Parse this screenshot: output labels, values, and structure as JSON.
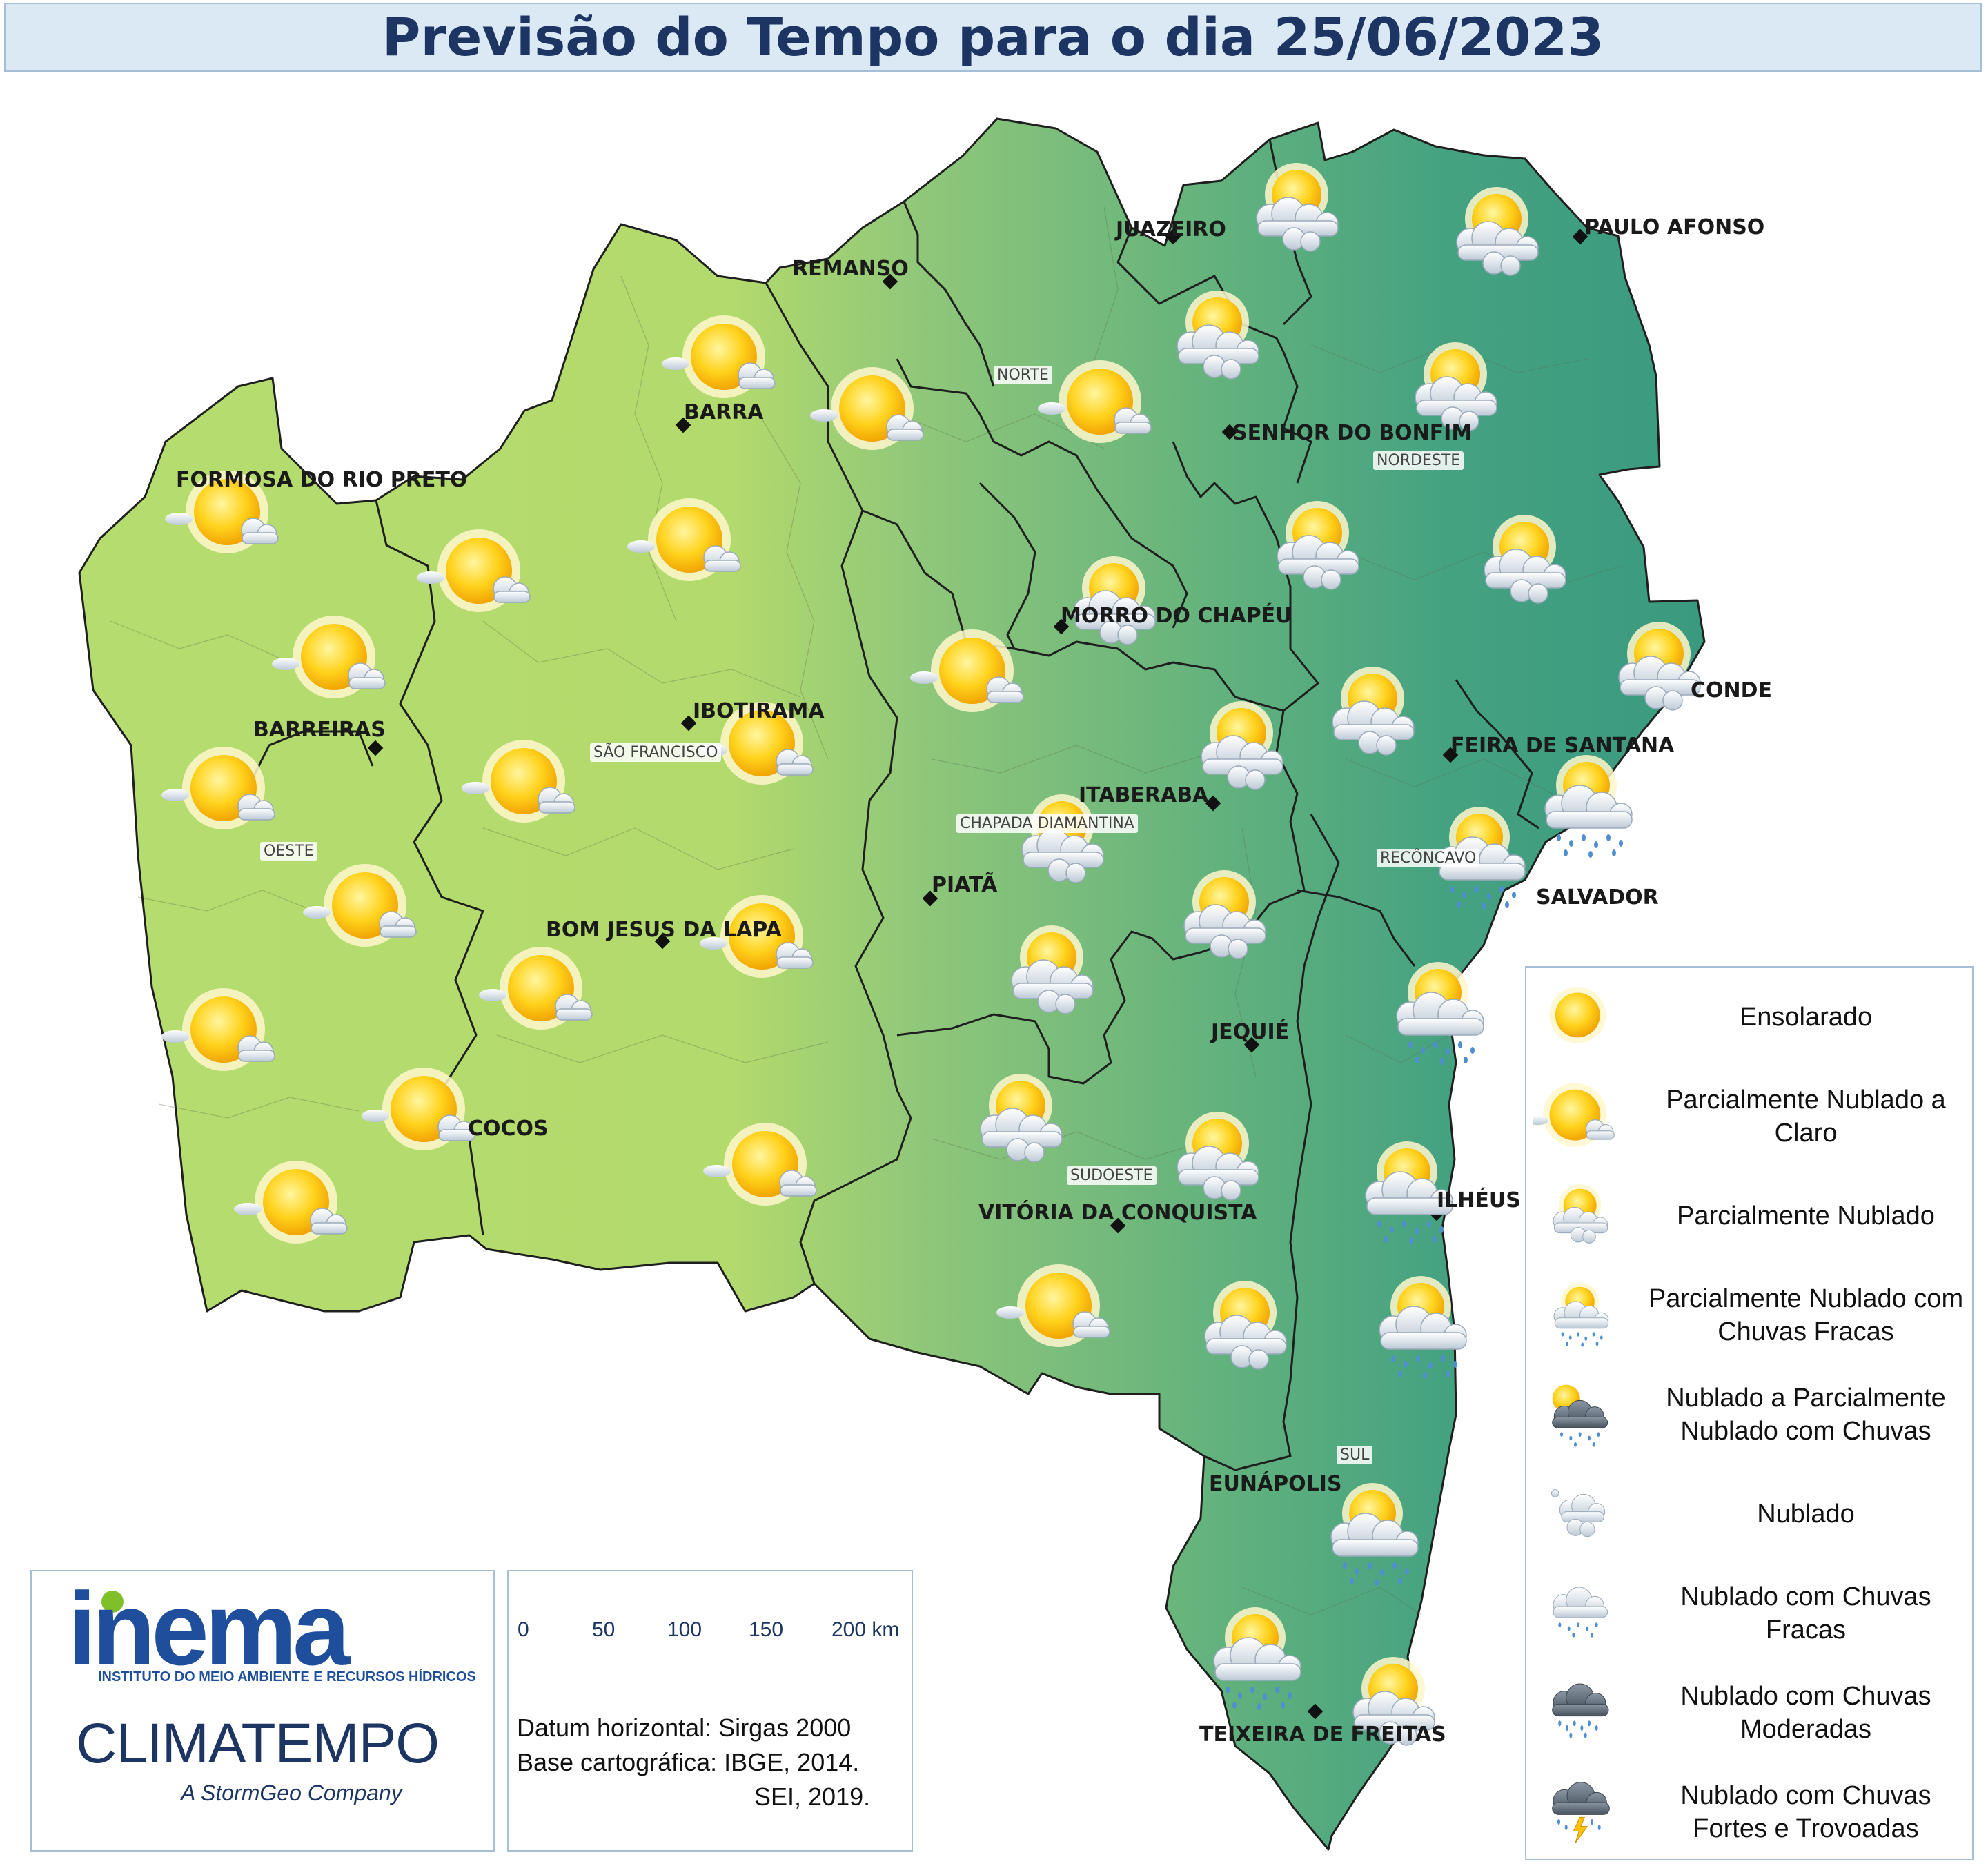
{
  "title": "Previsão do Tempo para o dia 25/06/2023",
  "cities": [
    {
      "name": "JUAZEIRO"
    },
    {
      "name": "PAULO AFONSO"
    },
    {
      "name": "REMANSO"
    },
    {
      "name": "BARRA"
    },
    {
      "name": "SENHOR DO BONFIM"
    },
    {
      "name": "FORMOSA DO RIO PRETO"
    },
    {
      "name": "MORRO DO CHAPÉU"
    },
    {
      "name": "CONDE"
    },
    {
      "name": "IBOTIRAMA"
    },
    {
      "name": "BARREIRAS"
    },
    {
      "name": "FEIRA DE SANTANA"
    },
    {
      "name": "ITABERABA"
    },
    {
      "name": "PIATÃ"
    },
    {
      "name": "SALVADOR"
    },
    {
      "name": "BOM JESUS DA LAPA"
    },
    {
      "name": "JEQUIÉ"
    },
    {
      "name": "COCOS"
    },
    {
      "name": "ILHÉUS"
    },
    {
      "name": "VITÓRIA DA CONQUISTA"
    },
    {
      "name": "EUNÁPOLIS"
    },
    {
      "name": "TEIXEIRA DE FREITAS"
    }
  ],
  "regions": [
    "NORTE",
    "NORDESTE",
    "SÃO FRANCISCO",
    "OESTE",
    "CHAPADA DIAMANTINA",
    "RECÔNCAVO",
    "SUDOESTE",
    "SUL"
  ],
  "legend": [
    {
      "label": "Ensolarado",
      "icon": "sun-icon"
    },
    {
      "label": "Parcialmente Nublado a Claro",
      "icon": "sun-small-cloud-icon"
    },
    {
      "label": "Parcialmente Nublado",
      "icon": "partly-cloudy-icon"
    },
    {
      "label": "Parcialmente Nublado com Chuvas Fracas",
      "icon": "partly-cloudy-light-rain-icon"
    },
    {
      "label": "Nublado a Parcialmente Nublado com Chuvas",
      "icon": "dark-cloud-sun-rain-icon"
    },
    {
      "label": "Nublado",
      "icon": "cloud-icon"
    },
    {
      "label": "Nublado com Chuvas Fracas",
      "icon": "cloud-light-rain-icon"
    },
    {
      "label": "Nublado com Chuvas Moderadas",
      "icon": "dark-cloud-moderate-rain-icon"
    },
    {
      "label": "Nublado com Chuvas Fortes e Trovoadas",
      "icon": "storm-icon"
    }
  ],
  "scale": {
    "ticks": [
      "0",
      "50",
      "100",
      "150",
      "200 km"
    ]
  },
  "credits": {
    "datum": "Datum horizontal: Sirgas 2000",
    "base1": "Base cartográfica: IBGE, 2014.",
    "base2": "SEI, 2019."
  },
  "logos": {
    "inema": "inema",
    "inema_subtitle": "INSTITUTO DO MEIO AMBIENTE E RECURSOS HÍDRICOS",
    "climatempo": "CLIMATEMPO",
    "climatempo_tagline": "A StormGeo Company"
  },
  "colors": {
    "title_bg": "#dbe9f5",
    "title_text": "#1d3563",
    "west": "#b5dc6e",
    "east": "#3e9e80",
    "border": "#a7bfd6"
  },
  "forecast_icons": [
    "partly-cloudy-icon",
    "partly-cloudy-icon",
    "partly-cloudy-icon",
    "partly-cloudy-icon",
    "sun-small-cloud-icon",
    "sun-small-cloud-icon",
    "sun-small-cloud-icon",
    "sun-small-cloud-icon",
    "sun-small-cloud-icon",
    "sun-small-cloud-icon",
    "sun-small-cloud-icon",
    "sun-small-cloud-icon",
    "partly-cloudy-icon",
    "partly-cloudy-icon",
    "partly-cloudy-icon",
    "partly-cloudy-icon",
    "partly-cloudy-icon",
    "partly-cloudy-light-rain-icon",
    "partly-cloudy-light-rain-icon",
    "partly-cloudy-icon",
    "partly-cloudy-icon",
    "sun-small-cloud-icon",
    "sun-small-cloud-icon",
    "sun-small-cloud-icon",
    "sun-small-cloud-icon",
    "partly-cloudy-icon",
    "partly-cloudy-icon",
    "partly-cloudy-light-rain-icon",
    "sun-small-cloud-icon",
    "sun-small-cloud-icon",
    "partly-cloudy-icon",
    "partly-cloudy-icon",
    "partly-cloudy-light-rain-icon",
    "sun-small-cloud-icon",
    "partly-cloudy-icon",
    "partly-cloudy-light-rain-icon",
    "partly-cloudy-light-rain-icon",
    "partly-cloudy-light-rain-icon"
  ]
}
